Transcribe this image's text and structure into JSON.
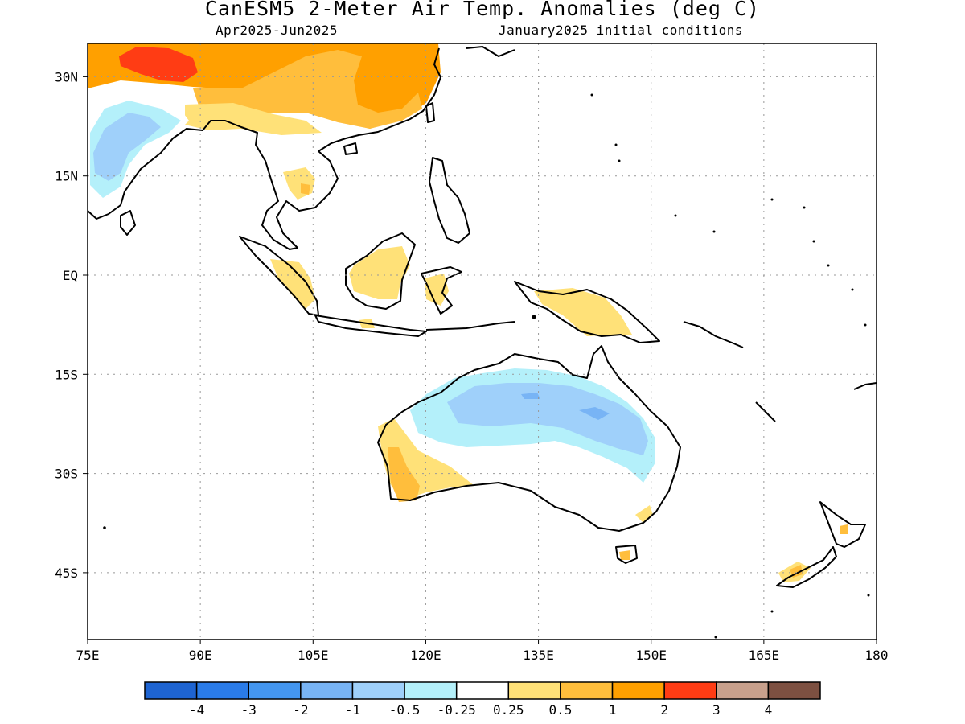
{
  "title": "CanESM5 2-Meter Air Temp. Anomalies (deg C)",
  "subtitle_left": "Apr2025-Jun2025",
  "subtitle_right": "January2025 initial conditions",
  "map": {
    "lon_range": [
      75,
      180
    ],
    "lat_range": [
      -49,
      35
    ],
    "lat_ticks": [
      {
        "lat": 30,
        "label": "30N"
      },
      {
        "lat": 15,
        "label": "15N"
      },
      {
        "lat": 0,
        "label": "EQ"
      },
      {
        "lat": -15,
        "label": "15S"
      },
      {
        "lat": -30,
        "label": "30S"
      },
      {
        "lat": -45,
        "label": "45S"
      }
    ],
    "lon_ticks": [
      {
        "lon": 75,
        "label": "75E"
      },
      {
        "lon": 90,
        "label": "90E"
      },
      {
        "lon": 105,
        "label": "105E"
      },
      {
        "lon": 120,
        "label": "120E"
      },
      {
        "lon": 135,
        "label": "135E"
      },
      {
        "lon": 150,
        "label": "150E"
      },
      {
        "lon": 165,
        "label": "165E"
      },
      {
        "lon": 180,
        "label": "180"
      }
    ],
    "gridlines": "dotted"
  },
  "colorbar": {
    "bins": [
      {
        "color": "#1e64d2"
      },
      {
        "color": "#2a7be8"
      },
      {
        "color": "#4496f0"
      },
      {
        "color": "#78b4f5"
      },
      {
        "color": "#9fd0fa"
      },
      {
        "color": "#b4f0fa"
      },
      {
        "color": "#ffffff"
      },
      {
        "color": "#ffe178"
      },
      {
        "color": "#ffbe3c"
      },
      {
        "color": "#ffa000"
      },
      {
        "color": "#ff3c14"
      },
      {
        "color": "#c8a08c"
      },
      {
        "color": "#7d5041"
      }
    ],
    "labels": [
      "-4",
      "-3",
      "-2",
      "-1",
      "-0.5",
      "-0.25",
      "0.25",
      "0.5",
      "1",
      "2",
      "3",
      "4"
    ]
  }
}
